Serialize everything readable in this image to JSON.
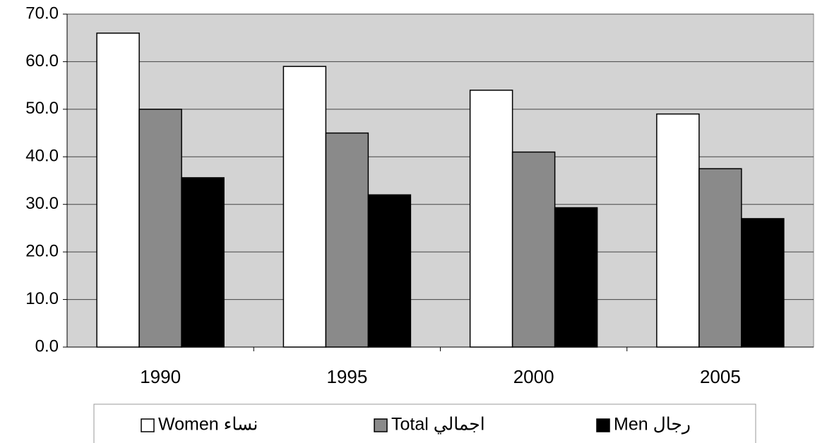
{
  "chart_data": {
    "type": "bar",
    "categories": [
      "1990",
      "1995",
      "2000",
      "2005"
    ],
    "series": [
      {
        "name": "Women نساء",
        "color": "#ffffff",
        "values": [
          66,
          59,
          54,
          49
        ]
      },
      {
        "name": "Total اجمالي",
        "color": "#8a8a8a",
        "values": [
          50,
          45,
          41,
          37.5
        ]
      },
      {
        "name": "Men رجال",
        "color": "#000000",
        "values": [
          35.6,
          32,
          29.3,
          27
        ]
      }
    ],
    "ylim": [
      0,
      70
    ],
    "yticks": [
      {
        "value": 0,
        "label": "0.0"
      },
      {
        "value": 10,
        "label": "10.0"
      },
      {
        "value": 20,
        "label": "20.0"
      },
      {
        "value": 30,
        "label": "30.0"
      },
      {
        "value": 40,
        "label": "40.0"
      },
      {
        "value": 50,
        "label": "50.0"
      },
      {
        "value": 60,
        "label": "60.0"
      },
      {
        "value": 70,
        "label": "70.0"
      }
    ],
    "grid": true,
    "legend": "bottom"
  }
}
